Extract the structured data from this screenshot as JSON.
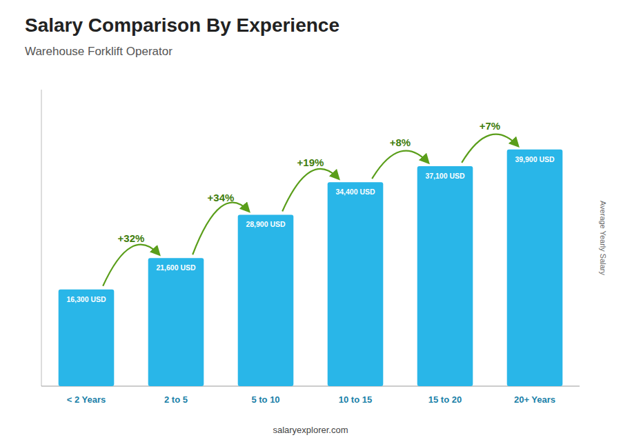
{
  "chart_data": {
    "type": "bar",
    "title": "Salary Comparison By Experience",
    "subtitle": "Warehouse Forklift Operator",
    "ylabel": "Average Yearly Salary",
    "footer": "salaryexplorer.com",
    "categories": [
      "< 2 Years",
      "2 to 5",
      "5 to 10",
      "10 to 15",
      "15 to 20",
      "20+ Years"
    ],
    "values": [
      16300,
      21600,
      28900,
      34400,
      37100,
      39900
    ],
    "value_labels": [
      "16,300 USD",
      "21,600 USD",
      "28,900 USD",
      "34,400 USD",
      "37,100 USD",
      "39,900 USD"
    ],
    "data_labels": true,
    "annotations": [
      "+32%",
      "+34%",
      "+19%",
      "+8%",
      "+7%"
    ],
    "color": "#29b6e8",
    "ylim": [
      0,
      50000
    ],
    "tick_labels": "x",
    "grid": false
  }
}
